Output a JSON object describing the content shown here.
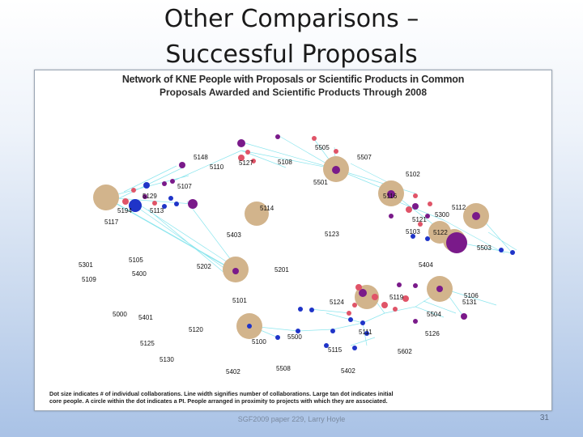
{
  "slide": {
    "title_line1": "Other Comparisons –",
    "title_line2": "Successful Proposals",
    "footer": "SGF2009 paper 229, Larry Hoyle",
    "page_number": "31"
  },
  "figure": {
    "heading": "Network of KNE People with Proposals or Scientific Products in Common",
    "subheading": "Proposals Awarded and Scientific Products Through 2008",
    "caption_line1": "Dot size indicates # of individual collaborations. Line width signifies number of collaborations. Large tan dot indicates initial",
    "caption_line2": "core people. A circle within the dot indicates a PI. People arranged in proximity to projects with which they are associated."
  },
  "chart_data": {
    "type": "network",
    "title": "Network of KNE People with Proposals or Scientific Products in Common",
    "subtitle": "Proposals Awarded and Scientific Products Through 2008",
    "node_labels": [
      "5505",
      "5507",
      "5148",
      "5110",
      "5127",
      "5108",
      "5102",
      "5501",
      "5107",
      "5129",
      "5116",
      "5112",
      "5194",
      "5113",
      "5300",
      "5114",
      "5121",
      "5117",
      "5103",
      "5122",
      "5403",
      "5123",
      "5503",
      "5105",
      "5404",
      "5301",
      "5202",
      "5201",
      "5400",
      "5109",
      "5106",
      "5119",
      "5131",
      "5101",
      "5124",
      "5504",
      "5000",
      "5401",
      "5120",
      "5111",
      "5126",
      "5100",
      "5500",
      "5125",
      "5115",
      "5602",
      "5130",
      "5508",
      "5402"
    ],
    "colors": {
      "edge": "#7fe3ec",
      "core": "#d2b48c",
      "purple": "#7a1a8a",
      "red": "#e05468",
      "blue": "#1f34c8"
    }
  }
}
